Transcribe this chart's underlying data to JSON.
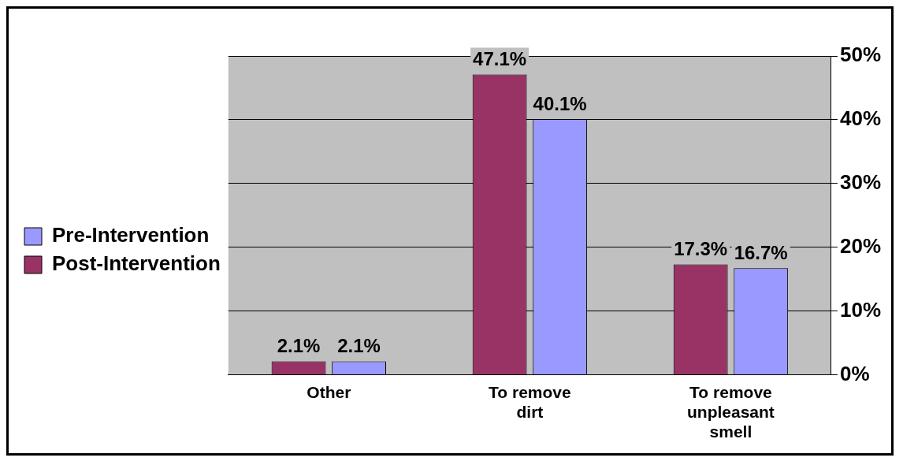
{
  "chart_data": {
    "type": "bar",
    "categories": [
      "Other",
      "To remove dirt",
      "To remove unpleasant smell"
    ],
    "series": [
      {
        "name": "Post-Intervention",
        "color": "#993366",
        "values": [
          2.1,
          47.1,
          17.3
        ],
        "value_labels": [
          "2.1%",
          "47.1%",
          "17.3%"
        ]
      },
      {
        "name": "Pre-Intervention",
        "color": "#9999ff",
        "values": [
          2.1,
          40.1,
          16.7
        ],
        "value_labels": [
          "2.1%",
          "40.1%",
          "16.7%"
        ]
      }
    ],
    "ylim": [
      0,
      50
    ],
    "yticks": [
      {
        "value": 0,
        "label": "0%"
      },
      {
        "value": 10,
        "label": "10%"
      },
      {
        "value": 20,
        "label": "20%"
      },
      {
        "value": 30,
        "label": "30%"
      },
      {
        "value": 40,
        "label": "40%"
      },
      {
        "value": 50,
        "label": "50%"
      }
    ],
    "grid": "y",
    "legend": "left"
  }
}
